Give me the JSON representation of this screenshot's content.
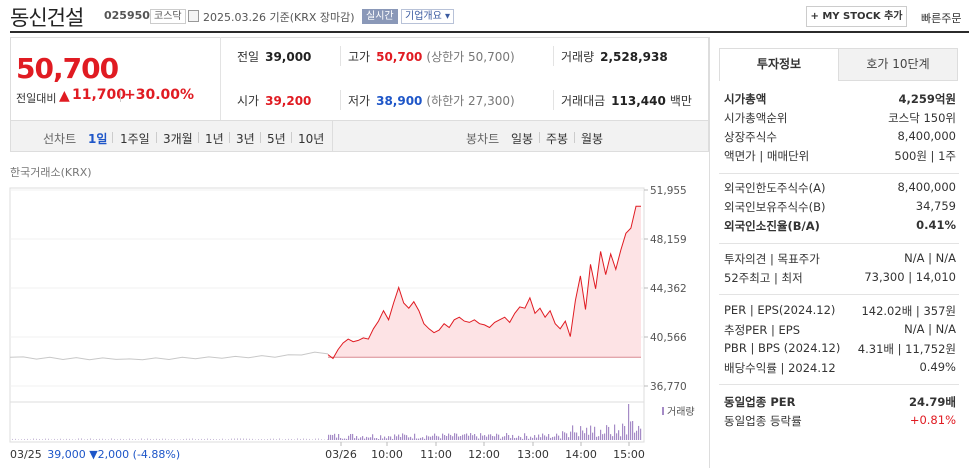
{
  "header": {
    "name": "동신건설",
    "code": "025950",
    "market_badge": "코스닥",
    "date": "2025.03.26 기준(KRX 장마감)",
    "realtime_badge": "실시간",
    "company_info": "기업개요 ▾",
    "mystock_button": "+ MY STOCK 추가",
    "quick_order": "빠른주문"
  },
  "price": {
    "current": "50,700",
    "change_label": "전일대비",
    "change_arrow": "▲",
    "change_value": "11,700",
    "change_pct": "+30.00%"
  },
  "quote": {
    "prev_close_label": "전일",
    "prev_close": "39,000",
    "high_label": "고가",
    "high": "50,700",
    "upper_limit": "(상한가 50,700)",
    "volume_label": "거래량",
    "volume": "2,528,938",
    "open_label": "시가",
    "open": "39,200",
    "low_label": "저가",
    "low": "38,900",
    "lower_limit": "(하한가 27,300)",
    "amount_label": "거래대금",
    "amount": "113,440",
    "amount_unit": "백만"
  },
  "period": {
    "label": "선차트",
    "items": [
      "1일",
      "1주일",
      "3개월",
      "1년",
      "3년",
      "5년",
      "10년"
    ],
    "selected": "1일",
    "candle_label": "봉차트",
    "candle_items": [
      "일봉",
      "주봉",
      "월봉"
    ]
  },
  "chart_source": "한국거래소(KRX)",
  "chart_data": {
    "type": "line",
    "y_ticks": [
      "51,955",
      "48,159",
      "44,362",
      "40,566",
      "36,770"
    ],
    "ylim": [
      36770,
      51955
    ],
    "x_ticks": [
      "03/26",
      "10:00",
      "11:00",
      "12:00",
      "13:00",
      "14:00",
      "15:00"
    ],
    "prev_day_x_label": "03/25",
    "prev_day_series": [
      39050,
      38980,
      38900,
      38950,
      38870,
      38920,
      38850,
      38900,
      38880,
      38820,
      38850,
      38900,
      38870,
      38950,
      38920,
      38980,
      38960,
      39020,
      39000,
      39080,
      39050,
      39150,
      39220,
      39350,
      39300
    ],
    "today_series": [
      39200,
      38900,
      39600,
      40100,
      40400,
      40200,
      40300,
      40500,
      40400,
      41200,
      41800,
      42600,
      41900,
      43200,
      44400,
      43200,
      42800,
      43300,
      42600,
      41600,
      41200,
      40900,
      41100,
      41600,
      41300,
      41900,
      42100,
      41800,
      41700,
      41900,
      41600,
      41500,
      41300,
      41700,
      41900,
      42100,
      41700,
      42400,
      42900,
      42800,
      43600,
      42400,
      42800,
      42100,
      42600,
      41600,
      41200,
      41800,
      40600,
      43400,
      45300,
      42700,
      46200,
      44300,
      47200,
      45400,
      47000,
      45800,
      47300,
      48600,
      49000,
      50700,
      50700
    ],
    "base_price": 39000,
    "volume_legend": "거래량"
  },
  "footer": {
    "date": "03/25",
    "price": "39,000",
    "arrow": "▼",
    "change": "2,000",
    "pct": "(-4.88%)"
  },
  "right_panel": {
    "tabs": [
      "투자정보",
      "호가 10단계"
    ],
    "section1": [
      {
        "label": "시가총액",
        "value": "4,259억원",
        "bold": true
      },
      {
        "label": "시가총액순위",
        "value": "코스닥 150위"
      },
      {
        "label": "상장주식수",
        "value": "8,400,000"
      },
      {
        "label": "액면가 | 매매단위",
        "value": "500원 | 1주"
      }
    ],
    "section2": [
      {
        "label": "외국인한도주식수(A)",
        "value": "8,400,000"
      },
      {
        "label": "외국인보유주식수(B)",
        "value": "34,759"
      },
      {
        "label": "외국인소진율(B/A)",
        "value": "0.41%",
        "bold": true
      }
    ],
    "section3": [
      {
        "label": "투자의견 | 목표주가",
        "value": "N/A | N/A"
      },
      {
        "label": "52주최고 | 최저",
        "value": "73,300 | 14,010"
      }
    ],
    "section4": [
      {
        "label": "PER | EPS(2024.12)",
        "value": "142.02배 | 357원"
      },
      {
        "label": "추정PER | EPS",
        "value": "N/A | N/A"
      },
      {
        "label": "PBR | BPS (2024.12)",
        "value": "4.31배 | 11,752원"
      },
      {
        "label": "배당수익률 | 2024.12",
        "value": "0.49%"
      }
    ],
    "section5": [
      {
        "label": "동일업종 PER",
        "value": "24.79배",
        "bold": true
      },
      {
        "label": "동일업종 등락률",
        "value": "+0.81%",
        "red": true
      }
    ]
  }
}
